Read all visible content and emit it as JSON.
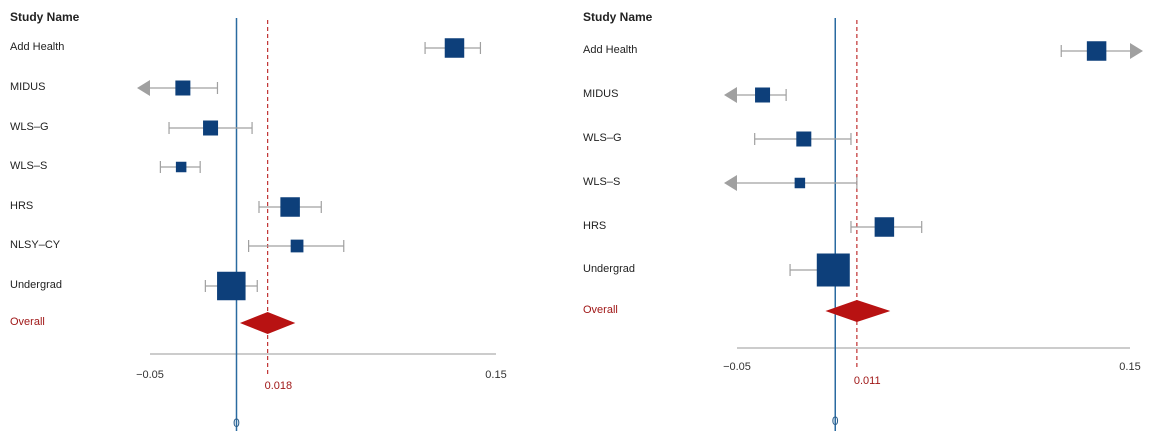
{
  "colors": {
    "marker": "#0d3f7a",
    "whisker": "#a0a0a0",
    "overall": "#b81212",
    "zero_line": "#2a6aa0",
    "ref_line": "#c03030",
    "axis": "#999999"
  },
  "chart_data": [
    {
      "type": "forest",
      "header": "Study Name",
      "x_ticks": [
        "−0.05",
        "0.15"
      ],
      "xlim": [
        -0.05,
        0.15
      ],
      "zero_label": "0",
      "reference_line": 0.018,
      "reference_label": "0.018",
      "overall_label": "Overall",
      "studies": [
        {
          "name": "Add Health",
          "estimate": 0.126,
          "ci": [
            0.109,
            0.141
          ],
          "weight": 3
        },
        {
          "name": "MIDUS",
          "estimate": -0.031,
          "ci": [
            -0.05,
            -0.011
          ],
          "arrow_left": true,
          "weight": 2
        },
        {
          "name": "WLS–G",
          "estimate": -0.015,
          "ci": [
            -0.039,
            0.009
          ],
          "weight": 2
        },
        {
          "name": "WLS–S",
          "estimate": -0.032,
          "ci": [
            -0.044,
            -0.021
          ],
          "weight": 1
        },
        {
          "name": "HRS",
          "estimate": 0.031,
          "ci": [
            0.013,
            0.049
          ],
          "weight": 3
        },
        {
          "name": "NLSY–CY",
          "estimate": 0.035,
          "ci": [
            0.007,
            0.062
          ],
          "weight": 1.5
        },
        {
          "name": "Undergrad",
          "estimate": -0.003,
          "ci": [
            -0.018,
            0.012
          ],
          "weight": 5
        }
      ],
      "overall": {
        "estimate": 0.018,
        "ci": [
          0.002,
          0.034
        ]
      }
    },
    {
      "type": "forest",
      "header": "Study Name",
      "x_ticks": [
        "−0.05",
        "0.15"
      ],
      "xlim": [
        -0.05,
        0.15
      ],
      "zero_label": "0",
      "reference_line": 0.011,
      "reference_label": "0.011",
      "overall_label": "Overall",
      "studies": [
        {
          "name": "Add Health",
          "estimate": 0.133,
          "ci": [
            0.115,
            0.15
          ],
          "arrow_right": true,
          "weight": 3
        },
        {
          "name": "MIDUS",
          "estimate": -0.037,
          "ci": [
            -0.05,
            -0.025
          ],
          "arrow_left": true,
          "weight": 2
        },
        {
          "name": "WLS–G",
          "estimate": -0.016,
          "ci": [
            -0.041,
            0.008
          ],
          "weight": 2
        },
        {
          "name": "WLS–S",
          "estimate": -0.018,
          "ci": [
            -0.05,
            0.011
          ],
          "arrow_left": true,
          "weight": 1
        },
        {
          "name": "HRS",
          "estimate": 0.025,
          "ci": [
            0.008,
            0.044
          ],
          "weight": 3
        },
        {
          "name": "Undergrad",
          "estimate": -0.001,
          "ci": [
            -0.023,
            0.006
          ],
          "weight": 6
        }
      ],
      "overall": {
        "estimate": 0.011,
        "ci": [
          -0.005,
          0.028
        ]
      }
    }
  ]
}
